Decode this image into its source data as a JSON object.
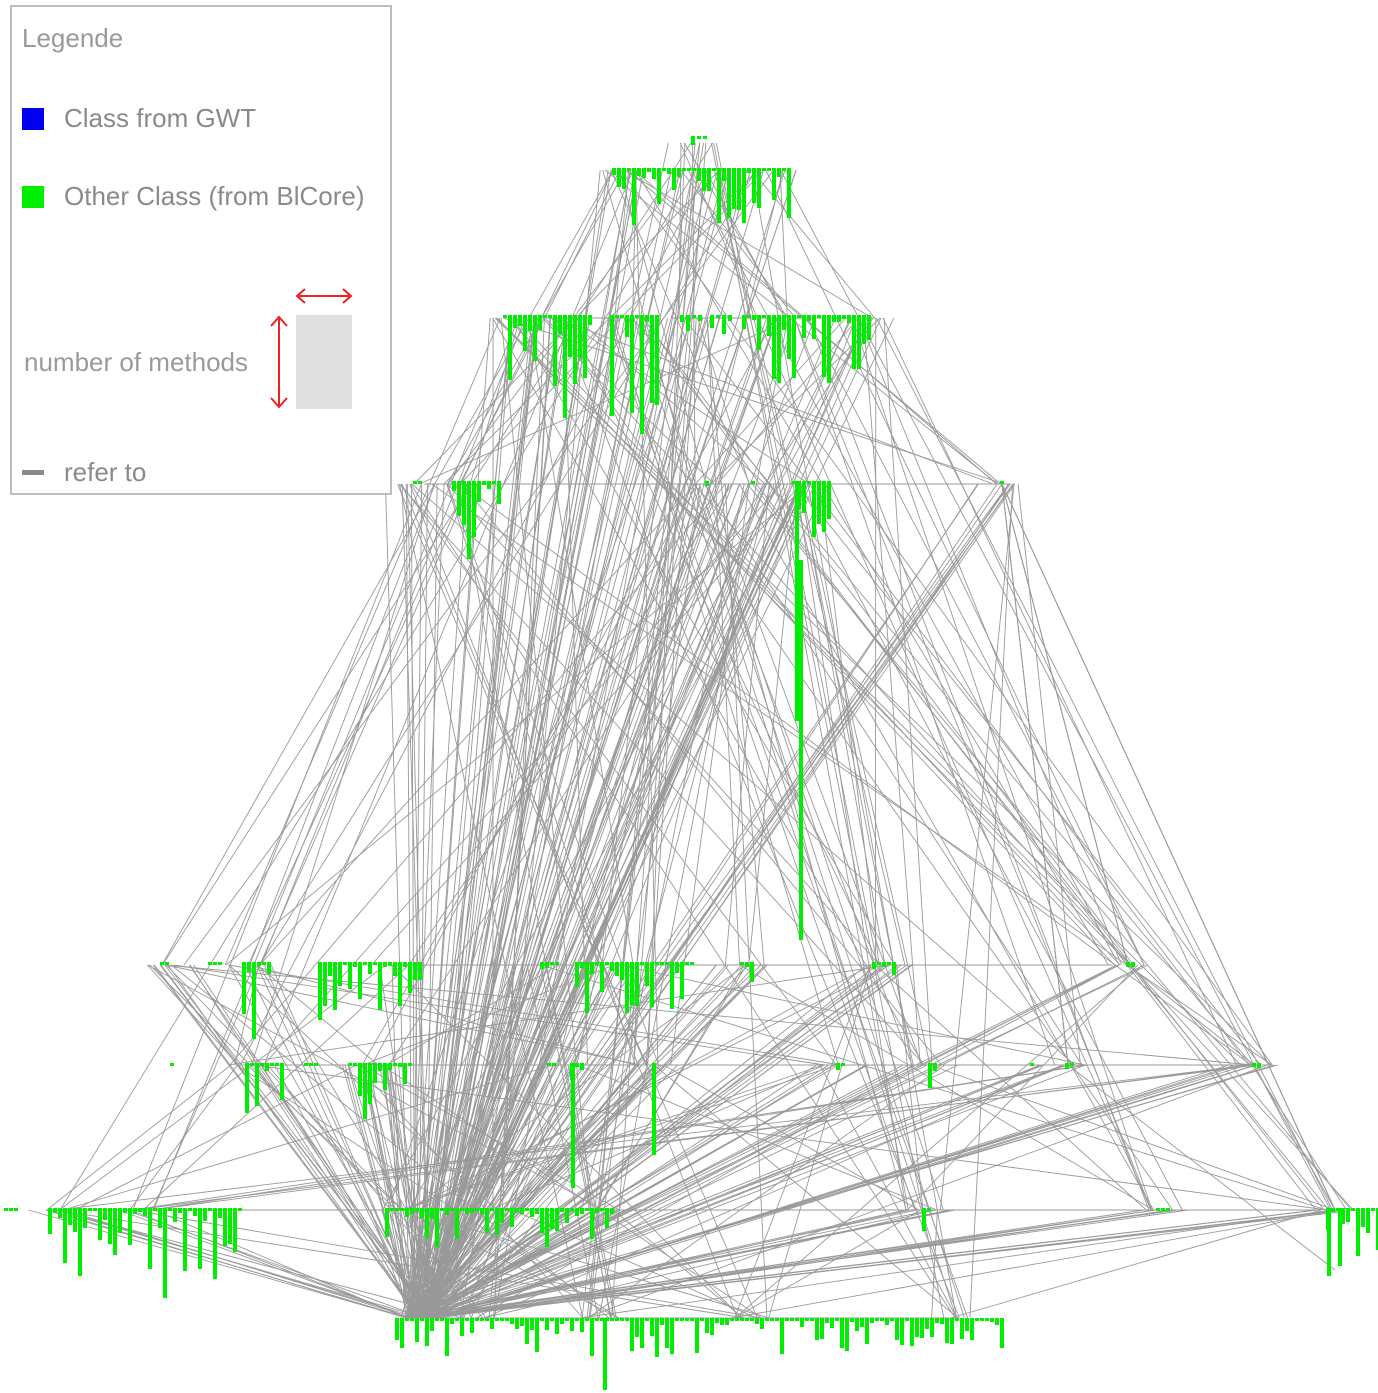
{
  "legend": {
    "title": "Legende",
    "items": [
      {
        "label": "Class from GWT",
        "color": "#0000ee"
      },
      {
        "label": "Other Class (from BlCore)",
        "color": "#00ee00"
      }
    ],
    "size_label": "number of methods",
    "edge_label": "refer to",
    "edge_color": "#8a8a8a",
    "size_arrow_color": "#ee2222",
    "size_box_color": "#e0e0e0"
  },
  "graph": {
    "node_color": "#00ee00",
    "edge_color": "#999999"
  }
}
